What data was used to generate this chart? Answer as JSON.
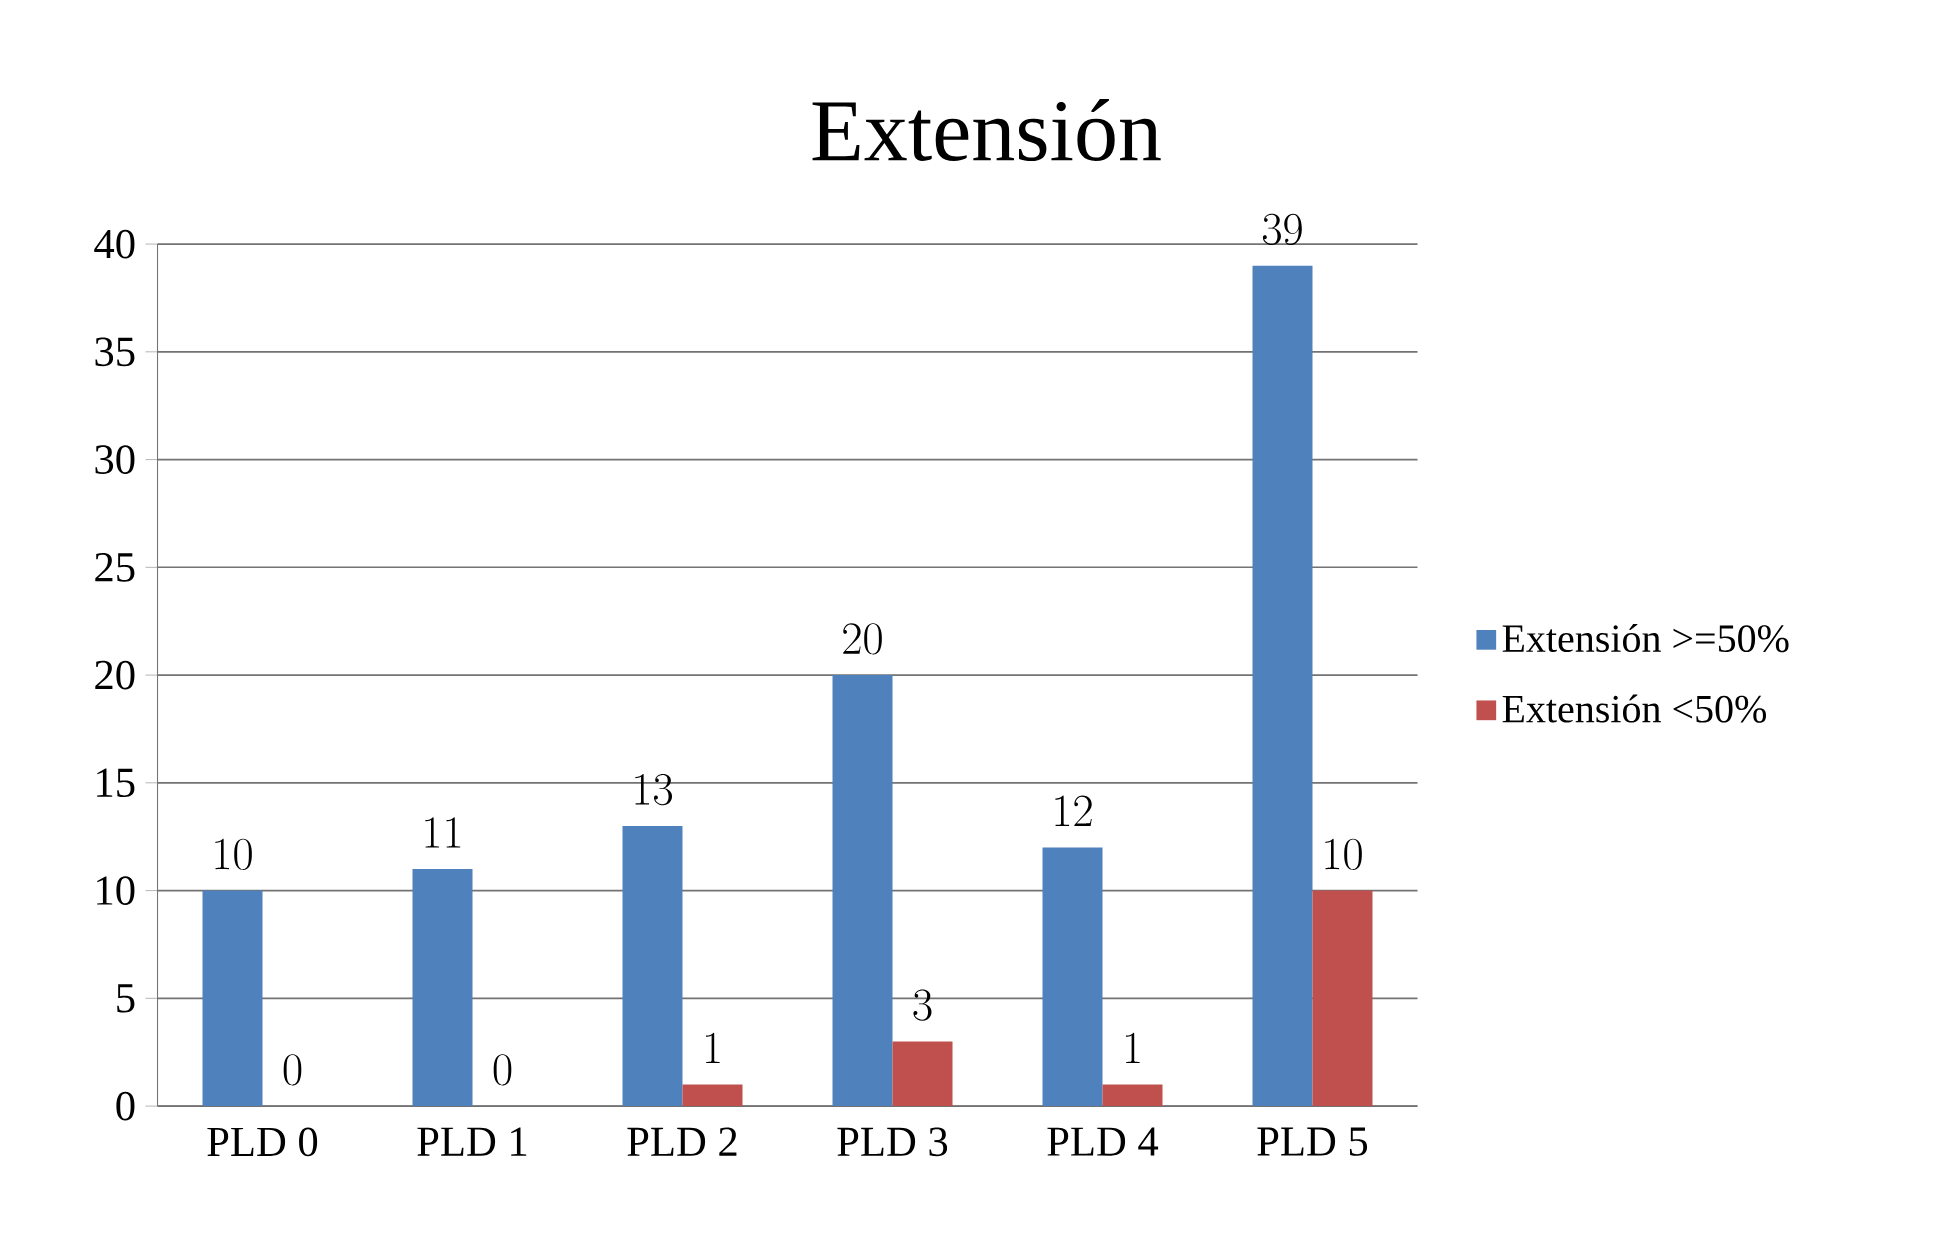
{
  "chart_data": {
    "type": "bar",
    "title": "Extensión",
    "categories": [
      "PLD 0",
      "PLD 1",
      "PLD 2",
      "PLD 3",
      "PLD 4",
      "PLD 5"
    ],
    "series": [
      {
        "name": "Extensión >=50%",
        "color": "#4f81bd",
        "values": [
          10,
          11,
          13,
          20,
          12,
          39
        ]
      },
      {
        "name": "Extensión <50%",
        "color": "#c0504d",
        "values": [
          0,
          0,
          1,
          3,
          1,
          10
        ]
      }
    ],
    "ylim": [
      0,
      40
    ],
    "yticks": [
      0,
      5,
      10,
      15,
      20,
      25,
      30,
      35,
      40
    ],
    "grid": "y",
    "legend": "right",
    "data_labels": true
  }
}
